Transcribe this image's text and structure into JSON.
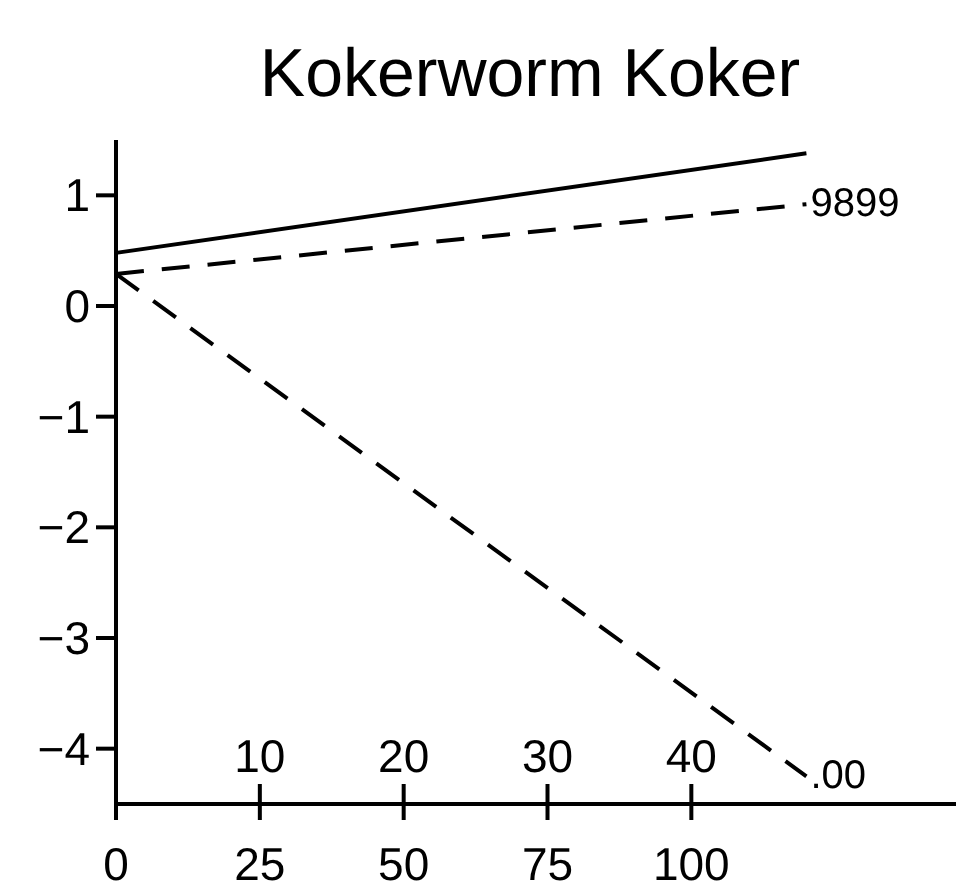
{
  "chart_data": {
    "type": "line",
    "title": "Kokerworm Koker",
    "x": [
      0,
      120
    ],
    "xlim": [
      0,
      146
    ],
    "xticks": [
      0,
      25,
      50,
      75,
      100
    ],
    "x2lim": [
      0,
      58.4
    ],
    "x2ticks": [
      10,
      20,
      30,
      40
    ],
    "ylim": [
      -4.5,
      1.5
    ],
    "yticks": [
      -4,
      -3,
      -2,
      -1,
      0,
      1
    ],
    "grid": false,
    "marker": "none",
    "series": [
      {
        "color": "#000000",
        "values": [
          0.48,
          1.38
        ],
        "line_style": "solid"
      },
      {
        "color": "#000000",
        "values": [
          0.29,
          0.92
        ],
        "line_style": "dashed"
      },
      {
        "color": "#000000",
        "values": [
          0.29,
          -4.25
        ],
        "line_style": "dashed"
      }
    ],
    "annotations": [
      {
        "text": "9899",
        "x": 120,
        "y": 0.92
      },
      {
        "text": ".00",
        "x": 120,
        "y": -4.25
      }
    ]
  }
}
